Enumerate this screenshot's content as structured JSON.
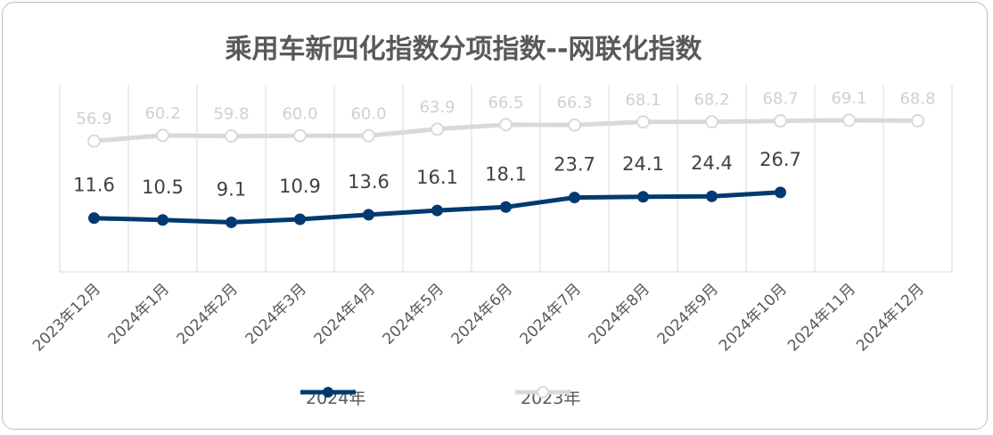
{
  "chart_data": {
    "type": "line",
    "title": "乘用车新四化指数分项指数--网联化指数",
    "categories": [
      "2023年12月",
      "2024年1月",
      "2024年2月",
      "2024年3月",
      "2024年4月",
      "2024年5月",
      "2024年6月",
      "2024年7月",
      "2024年8月",
      "2024年9月",
      "2024年10月",
      "2024年11月",
      "2024年12月"
    ],
    "series": [
      {
        "name": "2024年",
        "color": "#003a70",
        "values": [
          11.6,
          10.5,
          9.1,
          10.9,
          13.6,
          16.1,
          18.1,
          23.7,
          24.1,
          24.4,
          26.7,
          null,
          null
        ]
      },
      {
        "name": "2023年",
        "color": "#d9d9d9",
        "values": [
          56.9,
          60.2,
          59.8,
          60.0,
          60.0,
          63.9,
          66.5,
          66.3,
          68.1,
          68.2,
          68.7,
          69.1,
          68.8
        ]
      }
    ],
    "label_color_2024": "#404040",
    "label_color_2023": "#d0d0d0",
    "ylim": [
      -20,
      90
    ],
    "grid": "vertical",
    "legend_position": "bottom"
  }
}
